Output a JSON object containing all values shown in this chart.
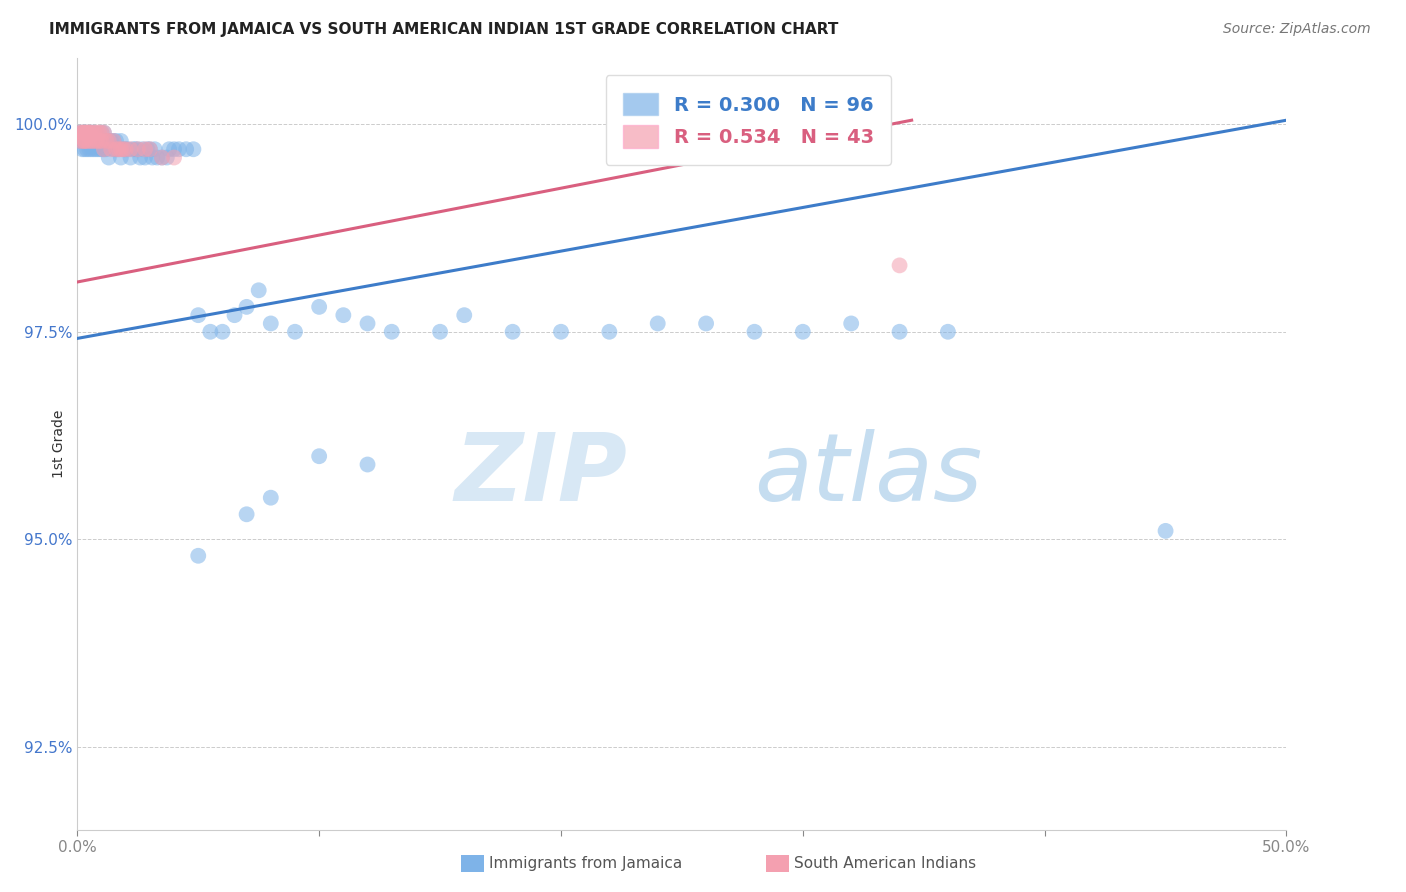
{
  "title": "IMMIGRANTS FROM JAMAICA VS SOUTH AMERICAN INDIAN 1ST GRADE CORRELATION CHART",
  "source": "Source: ZipAtlas.com",
  "ylabel_label": "1st Grade",
  "x_min": 0.0,
  "x_max": 0.5,
  "y_min": 0.915,
  "y_max": 1.008,
  "y_ticks": [
    0.925,
    0.95,
    0.975,
    1.0
  ],
  "y_tick_labels": [
    "92.5%",
    "95.0%",
    "97.5%",
    "100.0%"
  ],
  "blue_color": "#7EB3E8",
  "pink_color": "#F4A0B0",
  "blue_line_color": "#3D7CC9",
  "pink_line_color": "#D95F7F",
  "R_blue": 0.3,
  "N_blue": 96,
  "R_pink": 0.534,
  "N_pink": 43,
  "watermark_zip": "ZIP",
  "watermark_atlas": "atlas",
  "legend_label_blue": "Immigrants from Jamaica",
  "legend_label_pink": "South American Indians",
  "blue_line_x0": 0.0,
  "blue_line_y0": 0.9742,
  "blue_line_x1": 0.5,
  "blue_line_y1": 1.0005,
  "pink_line_x0": 0.0,
  "pink_line_y0": 0.981,
  "pink_line_x1": 0.345,
  "pink_line_y1": 1.0005
}
